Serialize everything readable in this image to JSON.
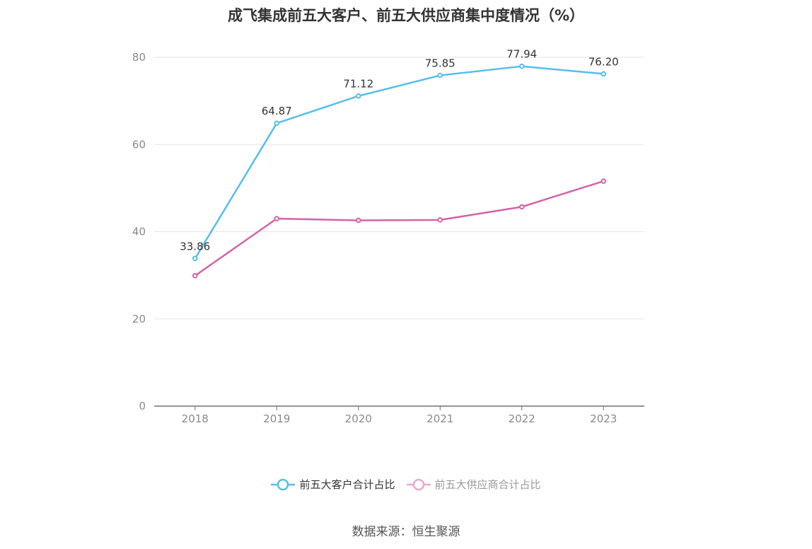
{
  "title": "成飞集成前五大客户、前五大供应商集中度情况（%）",
  "source": "数据来源：恒生聚源",
  "colors": {
    "series1": "#56bdeb",
    "series2": "#d264a8",
    "series2_legend": "#e8a8cf",
    "grid": "#e3e6f0",
    "axis": "#6e7079"
  },
  "chart_data": {
    "type": "line",
    "title": "成飞集成前五大客户、前五大供应商集中度情况（%）",
    "xlabel": "",
    "ylabel": "",
    "categories": [
      "2018",
      "2019",
      "2020",
      "2021",
      "2022",
      "2023"
    ],
    "y_ticks": [
      "0",
      "20",
      "40",
      "60",
      "80"
    ],
    "ylim": [
      0,
      80
    ],
    "grid": true,
    "legend_position": "bottom",
    "series": [
      {
        "name": "前五大客户合计占比",
        "values": [
          33.86,
          64.87,
          71.12,
          75.85,
          77.94,
          76.2
        ],
        "labels": [
          "33.86",
          "64.87",
          "71.12",
          "75.85",
          "77.94",
          "76.20"
        ]
      },
      {
        "name": "前五大供应商合计占比",
        "values": [
          29.9,
          43.0,
          42.6,
          42.7,
          45.7,
          51.6
        ]
      }
    ]
  }
}
